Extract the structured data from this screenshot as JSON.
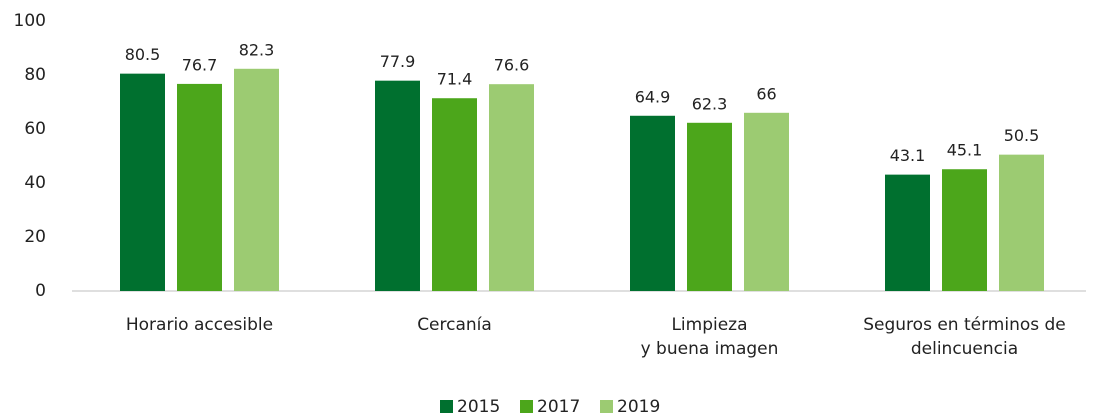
{
  "chart_data": {
    "type": "bar",
    "categories": [
      "Horario accesible",
      "Cercanía",
      "Limpieza\ny buena imagen",
      "Seguros en términos de\ndelincuencia"
    ],
    "series": [
      {
        "name": "2015",
        "color": "#00702f",
        "values": [
          80.5,
          77.9,
          64.9,
          43.1
        ]
      },
      {
        "name": "2017",
        "color": "#4ca61b",
        "values": [
          76.7,
          71.4,
          62.3,
          45.1
        ]
      },
      {
        "name": "2019",
        "color": "#9ccb72",
        "values": [
          82.3,
          76.6,
          66,
          50.5
        ]
      }
    ],
    "ylim": [
      0,
      100
    ],
    "yticks": [
      0,
      20,
      40,
      60,
      80,
      100
    ],
    "grid": false,
    "legend": "bottom"
  }
}
